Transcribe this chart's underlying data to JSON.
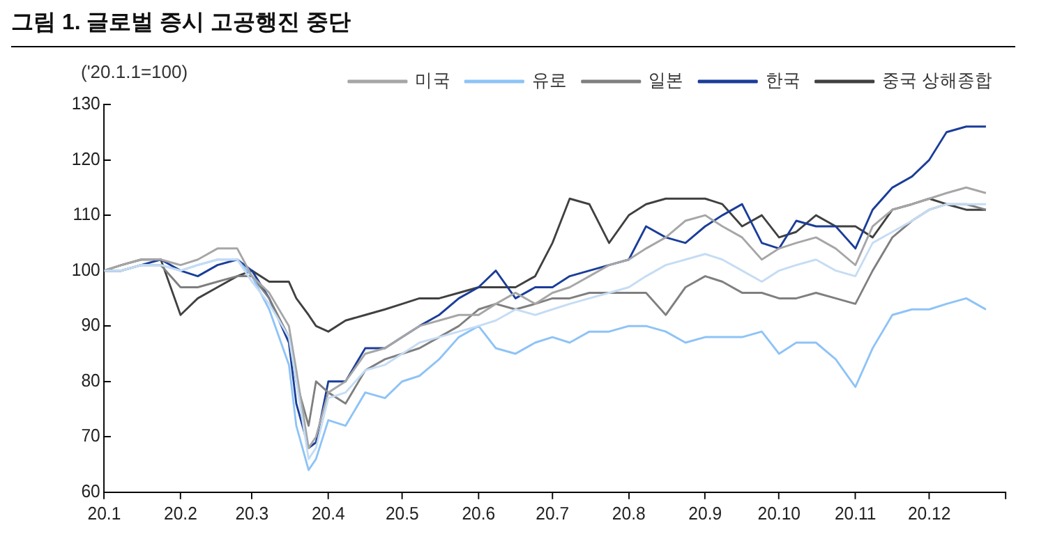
{
  "chart_data": {
    "type": "line",
    "title": "그림 1. 글로벌 증시 고공행진 중단",
    "ylabel": "('20.1.1=100)",
    "x": [
      "2020-01-01",
      "2020-01-08",
      "2020-01-16",
      "2020-01-24",
      "2020-02-01",
      "2020-02-08",
      "2020-02-16",
      "2020-02-24",
      "2020-03-01",
      "2020-03-08",
      "2020-03-16",
      "2020-03-19",
      "2020-03-24",
      "2020-03-27",
      "2020-04-01",
      "2020-04-08",
      "2020-04-16",
      "2020-04-24",
      "2020-05-01",
      "2020-05-08",
      "2020-05-16",
      "2020-05-24",
      "2020-06-01",
      "2020-06-08",
      "2020-06-16",
      "2020-06-24",
      "2020-07-01",
      "2020-07-08",
      "2020-07-16",
      "2020-07-24",
      "2020-08-01",
      "2020-08-08",
      "2020-08-16",
      "2020-08-24",
      "2020-09-01",
      "2020-09-08",
      "2020-09-16",
      "2020-09-24",
      "2020-10-01",
      "2020-10-08",
      "2020-10-16",
      "2020-10-24",
      "2020-11-01",
      "2020-11-08",
      "2020-11-16",
      "2020-11-24",
      "2020-12-01",
      "2020-12-08",
      "2020-12-16",
      "2020-12-24"
    ],
    "series": [
      {
        "color": "#c5dcf4",
        "values": [
          100,
          100,
          101,
          101,
          100,
          101,
          102,
          102,
          98,
          94,
          88,
          80,
          66,
          68,
          77,
          78,
          82,
          83,
          85,
          87,
          88,
          89,
          90,
          91,
          93,
          92,
          93,
          94,
          95,
          96,
          97,
          99,
          101,
          102,
          103,
          102,
          100,
          98,
          100,
          101,
          102,
          100,
          99,
          105,
          107,
          109,
          111,
          112,
          112,
          112
        ]
      },
      {
        "name": "미국",
        "color": "#a6a6a6",
        "values": [
          100,
          101,
          102,
          102,
          101,
          102,
          104,
          104,
          99,
          96,
          90,
          82,
          68,
          70,
          78,
          80,
          85,
          86,
          88,
          90,
          91,
          92,
          92,
          94,
          96,
          94,
          96,
          97,
          99,
          101,
          102,
          104,
          106,
          109,
          110,
          108,
          106,
          102,
          104,
          105,
          106,
          104,
          101,
          108,
          111,
          112,
          113,
          114,
          115,
          114
        ]
      },
      {
        "name": "유로",
        "color": "#8dc3f7",
        "values": [
          100,
          100,
          101,
          101,
          100,
          101,
          102,
          102,
          99,
          93,
          83,
          72,
          64,
          66,
          73,
          72,
          78,
          77,
          80,
          81,
          84,
          88,
          90,
          86,
          85,
          87,
          88,
          87,
          89,
          89,
          90,
          90,
          89,
          87,
          88,
          88,
          88,
          89,
          85,
          87,
          87,
          84,
          79,
          86,
          92,
          93,
          93,
          94,
          95,
          93
        ]
      },
      {
        "name": "일본",
        "color": "#7f7f7f",
        "values": [
          100,
          100,
          101,
          101,
          97,
          97,
          98,
          99,
          99,
          95,
          88,
          80,
          72,
          80,
          78,
          76,
          82,
          84,
          85,
          86,
          88,
          90,
          93,
          94,
          93,
          94,
          95,
          95,
          96,
          96,
          96,
          96,
          92,
          97,
          99,
          98,
          96,
          96,
          95,
          95,
          96,
          95,
          94,
          100,
          106,
          109,
          111,
          112,
          112,
          111
        ]
      },
      {
        "name": "한국",
        "color": "#1a3d99",
        "values": [
          100,
          100,
          101,
          102,
          100,
          99,
          101,
          102,
          100,
          95,
          87,
          76,
          68,
          69,
          80,
          80,
          86,
          86,
          88,
          90,
          92,
          95,
          97,
          100,
          95,
          97,
          97,
          99,
          100,
          101,
          102,
          108,
          106,
          105,
          108,
          110,
          112,
          105,
          104,
          109,
          108,
          108,
          104,
          111,
          115,
          117,
          120,
          125,
          126,
          126
        ]
      },
      {
        "name": "중국 상해종합",
        "color": "#404040",
        "values": [
          100,
          101,
          102,
          102,
          92,
          95,
          97,
          99,
          100,
          98,
          98,
          95,
          92,
          90,
          89,
          91,
          92,
          93,
          94,
          95,
          95,
          96,
          97,
          97,
          97,
          99,
          105,
          113,
          112,
          105,
          110,
          112,
          113,
          113,
          113,
          112,
          108,
          110,
          106,
          107,
          110,
          108,
          108,
          106,
          111,
          112,
          113,
          112,
          111,
          111
        ]
      }
    ],
    "xlim": [
      "2020-01-01",
      "2021-01-01"
    ],
    "xticks": [
      {
        "value": "2020-01-01",
        "label": "20.1"
      },
      {
        "value": "2020-02-01",
        "label": "20.2"
      },
      {
        "value": "2020-03-01",
        "label": "20.3"
      },
      {
        "value": "2020-04-01",
        "label": "20.4"
      },
      {
        "value": "2020-05-01",
        "label": "20.5"
      },
      {
        "value": "2020-06-01",
        "label": "20.6"
      },
      {
        "value": "2020-07-01",
        "label": "20.7"
      },
      {
        "value": "2020-08-01",
        "label": "20.8"
      },
      {
        "value": "2020-09-01",
        "label": "20.9"
      },
      {
        "value": "2020-10-01",
        "label": "20.10"
      },
      {
        "value": "2020-11-01",
        "label": "20.11"
      },
      {
        "value": "2020-12-01",
        "label": "20.12"
      },
      {
        "value": "2021-01-01",
        "label": null
      }
    ],
    "ylim": [
      60,
      130
    ],
    "yticks": [
      60,
      70,
      80,
      90,
      100,
      110,
      120,
      130
    ],
    "legend": "top",
    "marker": "none",
    "line_style": "solid"
  }
}
